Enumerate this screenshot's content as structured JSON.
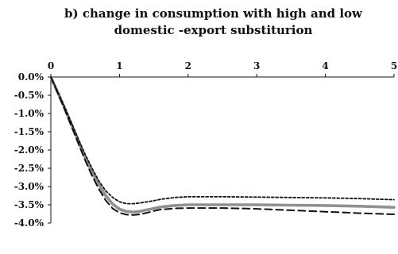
{
  "chart_data": {
    "type": "line",
    "title_lines": [
      "b) change in consumption with high and low",
      "domestic -export substiturion"
    ],
    "xlabel": "",
    "ylabel": "",
    "x_ticks": [
      "0",
      "1",
      "2",
      "3",
      "4",
      "5"
    ],
    "y_ticks": [
      "0.0%",
      "-0.5%",
      "-1.0%",
      "-1.5%",
      "-2.0%",
      "-2.5%",
      "-3.0%",
      "-3.5%",
      "-4.0%"
    ],
    "xlim": [
      0,
      5
    ],
    "ylim": [
      -4.0,
      0.0
    ],
    "x_axis_position": "top",
    "grid": false,
    "legend": "none",
    "series": [
      {
        "style": "solid-gray",
        "color": "#909090",
        "x": [
          0,
          0.1,
          0.2,
          0.3,
          0.4,
          0.5,
          0.6,
          0.7,
          0.8,
          0.9,
          1.0,
          1.1,
          1.2,
          1.3,
          1.4,
          1.5,
          1.6,
          1.8,
          2.0,
          2.5,
          3.0,
          3.5,
          4.0,
          4.5,
          5.0
        ],
        "y": [
          0.0,
          -0.42,
          -0.85,
          -1.3,
          -1.75,
          -2.2,
          -2.6,
          -2.95,
          -3.25,
          -3.48,
          -3.62,
          -3.68,
          -3.7,
          -3.68,
          -3.64,
          -3.6,
          -3.56,
          -3.52,
          -3.5,
          -3.5,
          -3.5,
          -3.51,
          -3.52,
          -3.54,
          -3.57
        ]
      },
      {
        "style": "dotted",
        "color": "#111111",
        "x": [
          0,
          0.1,
          0.2,
          0.3,
          0.4,
          0.5,
          0.6,
          0.7,
          0.8,
          0.9,
          1.0,
          1.1,
          1.2,
          1.3,
          1.4,
          1.5,
          1.6,
          1.8,
          2.0,
          2.5,
          3.0,
          3.5,
          4.0,
          4.5,
          5.0
        ],
        "y": [
          0.0,
          -0.4,
          -0.82,
          -1.25,
          -1.7,
          -2.12,
          -2.5,
          -2.85,
          -3.12,
          -3.3,
          -3.42,
          -3.47,
          -3.47,
          -3.45,
          -3.42,
          -3.39,
          -3.35,
          -3.3,
          -3.28,
          -3.28,
          -3.29,
          -3.3,
          -3.31,
          -3.33,
          -3.36
        ]
      },
      {
        "style": "dashed",
        "color": "#111111",
        "x": [
          0,
          0.1,
          0.2,
          0.3,
          0.4,
          0.5,
          0.6,
          0.7,
          0.8,
          0.9,
          1.0,
          1.1,
          1.2,
          1.3,
          1.4,
          1.5,
          1.6,
          1.8,
          2.0,
          2.5,
          3.0,
          3.5,
          4.0,
          4.5,
          5.0
        ],
        "y": [
          0.0,
          -0.43,
          -0.88,
          -1.35,
          -1.82,
          -2.28,
          -2.7,
          -3.07,
          -3.38,
          -3.6,
          -3.72,
          -3.77,
          -3.78,
          -3.76,
          -3.72,
          -3.67,
          -3.63,
          -3.6,
          -3.59,
          -3.59,
          -3.61,
          -3.65,
          -3.69,
          -3.73,
          -3.76
        ]
      }
    ]
  }
}
